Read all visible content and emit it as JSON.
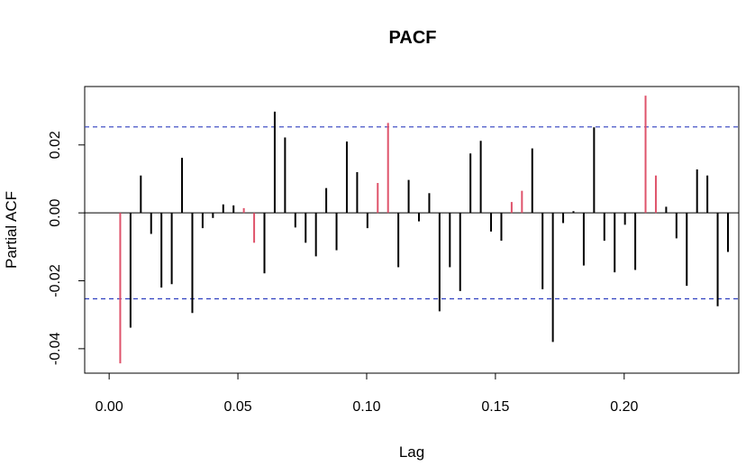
{
  "chart_data": {
    "type": "bar",
    "title": "PACF",
    "xlabel": "Lag",
    "ylabel": "Partial ACF",
    "xlim": [
      -0.0095,
      0.2445
    ],
    "ylim": [
      -0.0472,
      0.0372
    ],
    "x_ticks": [
      0.0,
      0.05,
      0.1,
      0.15,
      0.2
    ],
    "x_tick_labels": [
      "0.00",
      "0.05",
      "0.10",
      "0.15",
      "0.20"
    ],
    "y_ticks": [
      -0.04,
      -0.02,
      0.0,
      0.02
    ],
    "y_tick_labels": [
      "-0.04",
      "-0.02",
      "0.00",
      "0.02"
    ],
    "confidence_bound": 0.0253,
    "colors": {
      "bar_default": "#000000",
      "bar_highlight": "#DF536B",
      "ci_line": "#2E3FBF",
      "zero_line": "#000000"
    },
    "lags": [
      0.0043,
      0.0083,
      0.0123,
      0.0163,
      0.0203,
      0.0243,
      0.0283,
      0.0323,
      0.0363,
      0.0403,
      0.0443,
      0.0483,
      0.0523,
      0.0563,
      0.0603,
      0.0643,
      0.0683,
      0.0723,
      0.0763,
      0.0803,
      0.0843,
      0.0883,
      0.0923,
      0.0963,
      0.1003,
      0.1043,
      0.1083,
      0.1123,
      0.1163,
      0.1203,
      0.1243,
      0.1283,
      0.1323,
      0.1363,
      0.1403,
      0.1443,
      0.1483,
      0.1523,
      0.1563,
      0.1603,
      0.1643,
      0.1683,
      0.1723,
      0.1763,
      0.1803,
      0.1843,
      0.1883,
      0.1923,
      0.1963,
      0.2003,
      0.2043,
      0.2083,
      0.2123,
      0.2163,
      0.2203,
      0.2243,
      0.2283,
      0.2323,
      0.2363,
      0.2403
    ],
    "values": [
      -0.0443,
      -0.0338,
      0.011,
      -0.0062,
      -0.022,
      -0.021,
      0.0162,
      -0.0295,
      -0.0045,
      -0.0015,
      0.0025,
      0.0022,
      0.0014,
      -0.0088,
      -0.0178,
      0.0298,
      0.0222,
      -0.0043,
      -0.0088,
      -0.0128,
      0.0073,
      -0.011,
      0.021,
      0.012,
      -0.0045,
      0.0088,
      0.0265,
      -0.016,
      0.0097,
      -0.0025,
      0.0058,
      -0.029,
      -0.016,
      -0.023,
      0.0175,
      0.0212,
      -0.0055,
      -0.0082,
      0.0032,
      0.0065,
      0.019,
      -0.0225,
      -0.038,
      -0.003,
      0.0005,
      -0.0155,
      0.0252,
      -0.0082,
      -0.0175,
      -0.0035,
      -0.0168,
      0.0345,
      0.011,
      0.0018,
      -0.0075,
      -0.0215,
      0.0128,
      0.011,
      -0.0275,
      -0.0115
    ],
    "highlighted": [
      0,
      12,
      13,
      25,
      26,
      38,
      39,
      51,
      52
    ],
    "grid": false,
    "legend": "none"
  }
}
